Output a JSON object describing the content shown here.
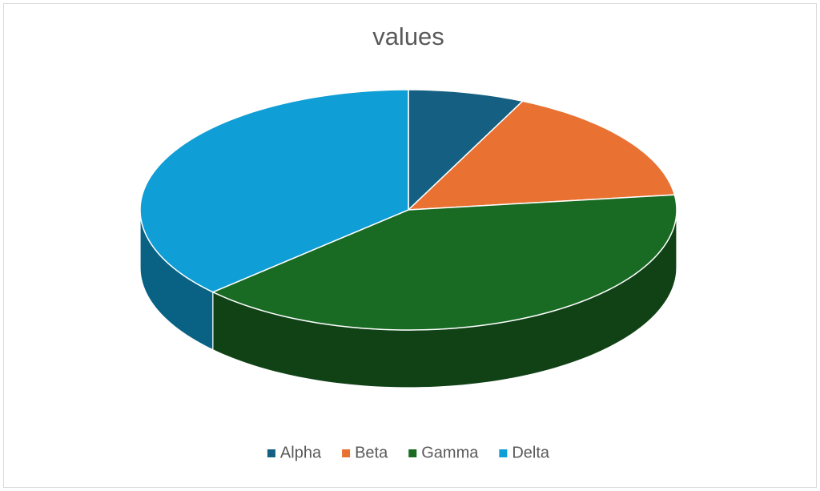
{
  "chart_data": {
    "type": "pie3d",
    "title": "values",
    "categories": [
      "Alpha",
      "Beta",
      "Gamma",
      "Delta"
    ],
    "values": [
      7,
      16,
      40,
      37
    ],
    "colors": [
      "#156082",
      "#e97132",
      "#196b24",
      "#0f9ed5"
    ],
    "legend": "bottom"
  }
}
